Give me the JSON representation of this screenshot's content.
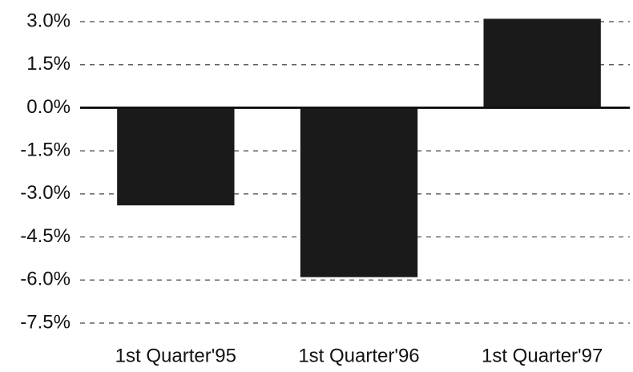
{
  "chart_data": {
    "type": "bar",
    "categories": [
      "1st Quarter'95",
      "1st Quarter'96",
      "1st Quarter'97"
    ],
    "values": [
      -3.4,
      -5.9,
      3.1
    ],
    "color": "#1a1a1a",
    "ylim": [
      -7.5,
      3.0
    ],
    "yticks": [
      {
        "value": 3.0,
        "label": "3.0%"
      },
      {
        "value": 1.5,
        "label": "1.5%"
      },
      {
        "value": 0,
        "label": "0.0%"
      },
      {
        "value": -1.5,
        "label": "-1.5%"
      },
      {
        "value": -3.0,
        "label": "-3.0%"
      },
      {
        "value": -4.5,
        "label": "-4.5%"
      },
      {
        "value": -6.0,
        "label": "-6.0%"
      },
      {
        "value": -7.5,
        "label": "-7.5%"
      }
    ],
    "grid": true
  }
}
